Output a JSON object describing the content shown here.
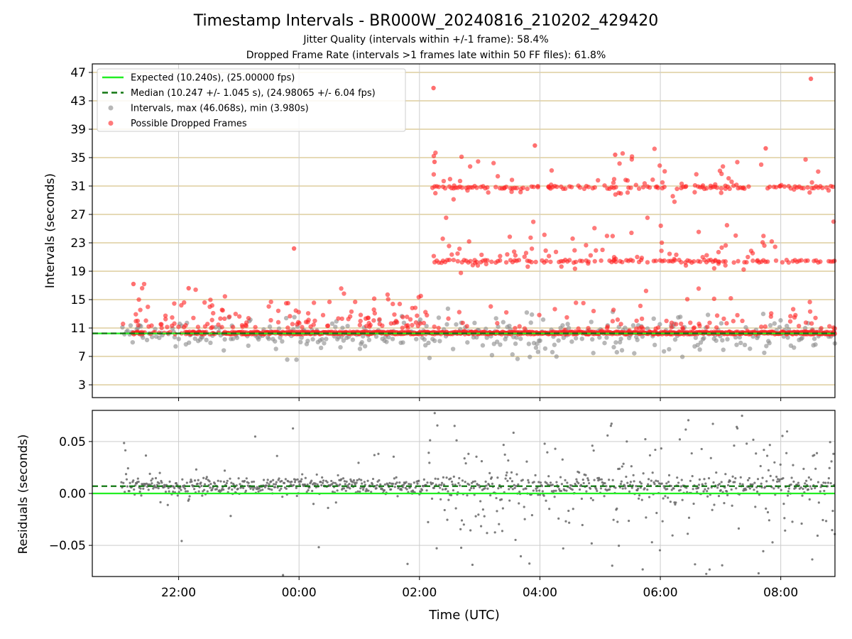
{
  "chart_data": [
    {
      "type": "scatter",
      "title": "Timestamp Intervals - BR000W_20240816_210202_429420",
      "subtitle_lines": [
        "Jitter Quality (intervals within +/-1 frame): 58.4%",
        "Dropped Frame Rate (intervals >1 frames late within 50 FF files): 61.8%"
      ],
      "xlabel": "",
      "ylabel": "Intervals (seconds)",
      "xlim": [
        "20:34",
        "08:54"
      ],
      "ylim": [
        1.2,
        48.2
      ],
      "yticks": [
        3,
        7,
        11,
        15,
        19,
        23,
        27,
        31,
        35,
        39,
        43,
        47
      ],
      "gridlines": "horizontal at y ticks (tan), vertical at x ticks (gray)",
      "legend_position": "upper-left",
      "legend": [
        {
          "label": "Expected (10.240s), (25.00000 fps)",
          "color": "#22ee22",
          "style": "solid-line"
        },
        {
          "label": "Median (10.247 +/- 1.045 s), (24.98065 +/- 6.04 fps)",
          "color": "#117711",
          "style": "dashed-line"
        },
        {
          "label": "Intervals, max (46.068s), min (3.980s)",
          "color": "#888888",
          "style": "marker"
        },
        {
          "label": "Possible Dropped Frames",
          "color": "#ff2222",
          "style": "marker"
        }
      ],
      "series": [
        {
          "name": "Expected (10.240s), (25.00000 fps)",
          "kind": "hline",
          "y": 10.24
        },
        {
          "name": "Median (10.247 +/- 1.045 s), (24.98065 +/- 6.04 fps)",
          "kind": "hline",
          "y": 10.247
        },
        {
          "name": "Intervals, max (46.068s), min (3.980s)",
          "kind": "scatter",
          "max": 46.068,
          "min": 3.98
        },
        {
          "name": "Possible Dropped Frames",
          "kind": "scatter",
          "clusters_y": [
            10.3,
            20.4,
            30.8
          ],
          "points": [
            [
              "21:15",
              17.2
            ],
            [
              "22:10",
              16.6
            ],
            [
              "23:55",
              22.2
            ],
            [
              "02:15",
              34.4
            ],
            [
              "02:14",
              44.8
            ],
            [
              "03:55",
              36.7
            ],
            [
              "05:15",
              35.4
            ],
            [
              "07:45",
              36.3
            ],
            [
              "08:30",
              46.1
            ]
          ]
        }
      ]
    },
    {
      "type": "scatter",
      "title": "",
      "xlabel": "Time (UTC)",
      "ylabel": "Residuals (seconds)",
      "xlim": [
        "20:34",
        "08:54"
      ],
      "ylim": [
        -0.08,
        0.08
      ],
      "yticks": [
        0.05,
        0.0,
        -0.05
      ],
      "ytick_labels": [
        "0.05",
        "0.00",
        "−0.05"
      ],
      "xticks": [
        "22:00",
        "00:00",
        "02:00",
        "04:00",
        "06:00",
        "08:00"
      ],
      "series": [
        {
          "name": "expected",
          "kind": "hline",
          "y": 0.0
        },
        {
          "name": "median",
          "kind": "hline",
          "y": 0.007
        },
        {
          "name": "residuals",
          "kind": "scatter",
          "center": 0.007,
          "spread_early": 0.004,
          "spread_late": 0.04
        }
      ]
    }
  ],
  "colors": {
    "expected": "#22ee22",
    "median": "#117711",
    "intervals": "#888888",
    "dropped": "#ff2222",
    "hgrid_top": "#d8c48a",
    "grid": "#cccccc"
  }
}
